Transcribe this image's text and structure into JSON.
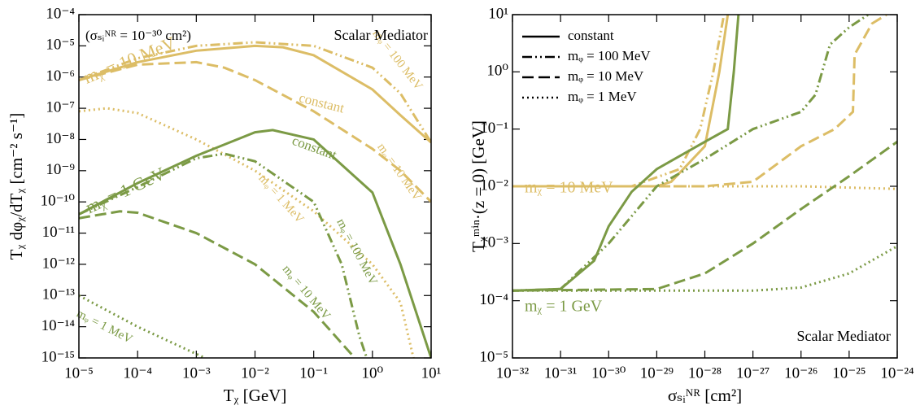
{
  "chart_data": [
    {
      "type": "line",
      "xlabel": "Tᵪ [GeV]",
      "ylabel": "Tᵪ dφᵪ/dTᵪ [cm⁻² s⁻¹]",
      "log_x": true,
      "log_y": true,
      "xlim": [
        1e-05,
        10
      ],
      "ylim": [
        1e-15,
        0.0001
      ],
      "xticks": [
        {
          "value": 1e-05,
          "label": "10⁻⁵"
        },
        {
          "value": 0.0001,
          "label": "10⁻⁴"
        },
        {
          "value": 0.001,
          "label": "10⁻³"
        },
        {
          "value": 0.01,
          "label": "10⁻²"
        },
        {
          "value": 0.1,
          "label": "10⁻¹"
        },
        {
          "value": 1,
          "label": "10⁰"
        },
        {
          "value": 10,
          "label": "10¹"
        }
      ],
      "yticks": [
        {
          "value": 1e-15,
          "label": "10⁻¹⁵"
        },
        {
          "value": 1e-14,
          "label": "10⁻¹⁴"
        },
        {
          "value": 1e-13,
          "label": "10⁻¹³"
        },
        {
          "value": 1e-12,
          "label": "10⁻¹²"
        },
        {
          "value": 1e-11,
          "label": "10⁻¹¹"
        },
        {
          "value": 1e-10,
          "label": "10⁻¹⁰"
        },
        {
          "value": 1e-09,
          "label": "10⁻⁹"
        },
        {
          "value": 1e-08,
          "label": "10⁻⁸"
        },
        {
          "value": 1e-07,
          "label": "10⁻⁷"
        },
        {
          "value": 1e-06,
          "label": "10⁻⁶"
        },
        {
          "value": 1e-05,
          "label": "10⁻⁵"
        },
        {
          "value": 0.0001,
          "label": "10⁻⁴"
        }
      ],
      "annotations": [
        {
          "text": "mᵪ = 10 MeV",
          "color": "#dcbd66"
        },
        {
          "text": "mᵪ = 1 GeV",
          "color": "#7b9a45"
        },
        {
          "text": "(σₛᵢᴺᴿ = 10⁻³⁰ cm²)",
          "color": "#000000"
        },
        {
          "text": "Scalar Mediator",
          "color": "#000000"
        }
      ],
      "series": [
        {
          "name": "constant",
          "color": "#dcbd66",
          "dash": "solid",
          "x": [
            1e-05,
            0.0001,
            0.001,
            0.01,
            0.03,
            0.1,
            1,
            3,
            10
          ],
          "values": [
            8e-07,
            3e-06,
            7e-06,
            1e-05,
            9e-06,
            5e-06,
            4e-07,
            6e-08,
            8e-09
          ]
        },
        {
          "name": "mᵩ = 100 MeV",
          "color": "#dcbd66",
          "dash": "dashdot",
          "x": [
            1e-05,
            0.0001,
            0.001,
            0.01,
            0.1,
            1,
            3,
            10
          ],
          "values": [
            8e-07,
            4e-06,
            1e-05,
            1.3e-05,
            1e-05,
            2e-06,
            3e-07,
            8e-09
          ]
        },
        {
          "name": "mᵩ = 10 MeV",
          "color": "#dcbd66",
          "dash": "dashed",
          "x": [
            1e-05,
            0.0001,
            0.001,
            0.003,
            0.01,
            0.1,
            1,
            3,
            10
          ],
          "values": [
            8e-07,
            2.5e-06,
            3e-06,
            2e-06,
            8e-07,
            8e-08,
            5e-09,
            1e-09,
            1e-10
          ]
        },
        {
          "name": "mᵩ = 1 MeV",
          "color": "#dcbd66",
          "dash": "dotted",
          "x": [
            1e-05,
            3e-05,
            0.0001,
            0.001,
            0.01,
            0.1,
            1,
            3,
            5
          ],
          "values": [
            8e-08,
            1e-07,
            7e-08,
            1e-08,
            1e-09,
            5e-11,
            1e-12,
            6e-14,
            1e-15
          ]
        },
        {
          "name": "constant",
          "color": "#7b9a45",
          "dash": "solid",
          "x": [
            1e-05,
            0.0001,
            0.001,
            0.01,
            0.02,
            0.1,
            1,
            3,
            10
          ],
          "values": [
            4e-11,
            4e-10,
            3e-09,
            1.7e-08,
            2e-08,
            1e-08,
            2e-10,
            1e-12,
            1e-15
          ]
        },
        {
          "name": "mᵩ = 100 MeV",
          "color": "#7b9a45",
          "dash": "dashdot",
          "x": [
            1e-05,
            0.0001,
            0.001,
            0.003,
            0.01,
            0.1,
            0.3,
            0.6,
            0.8
          ],
          "values": [
            4e-11,
            3e-10,
            2.5e-09,
            3.5e-09,
            2e-09,
            1e-10,
            1e-12,
            5e-15,
            1e-15
          ]
        },
        {
          "name": "mᵩ = 10 MeV",
          "color": "#7b9a45",
          "dash": "dashed",
          "x": [
            1e-05,
            5e-05,
            0.0001,
            0.001,
            0.01,
            0.1,
            0.5
          ],
          "values": [
            3e-11,
            5e-11,
            4.5e-11,
            1e-11,
            1e-12,
            3e-14,
            1e-15
          ]
        },
        {
          "name": "mᵩ = 1 MeV",
          "color": "#7b9a45",
          "dash": "dotted",
          "x": [
            1e-05,
            0.0001,
            0.0014
          ],
          "values": [
            1e-13,
            1e-14,
            1e-15
          ]
        }
      ]
    },
    {
      "type": "line",
      "xlabel": "σₛᵢᴺᴿ [cm²]",
      "ylabel": "Tᵪᵐⁱⁿ·(z = 0) [GeV]",
      "log_x": true,
      "log_y": true,
      "xlim": [
        1e-32,
        1e-24
      ],
      "ylim": [
        1e-05,
        10
      ],
      "xticks": [
        {
          "value": 1e-32,
          "label": "10⁻³²"
        },
        {
          "value": 1e-31,
          "label": "10⁻³¹"
        },
        {
          "value": 1e-30,
          "label": "10⁻³⁰"
        },
        {
          "value": 1e-29,
          "label": "10⁻²⁹"
        },
        {
          "value": 1e-28,
          "label": "10⁻²⁸"
        },
        {
          "value": 1e-27,
          "label": "10⁻²⁷"
        },
        {
          "value": 1e-26,
          "label": "10⁻²⁶"
        },
        {
          "value": 1e-25,
          "label": "10⁻²⁵"
        },
        {
          "value": 1e-24,
          "label": "10⁻²⁴"
        }
      ],
      "yticks": [
        {
          "value": 1e-05,
          "label": "10⁻⁵"
        },
        {
          "value": 0.0001,
          "label": "10⁻⁴"
        },
        {
          "value": 0.001,
          "label": "10⁻³"
        },
        {
          "value": 0.01,
          "label": "10⁻²"
        },
        {
          "value": 0.1,
          "label": "10⁻¹"
        },
        {
          "value": 1,
          "label": "10⁰"
        },
        {
          "value": 10,
          "label": "10¹"
        }
      ],
      "legend_position": "upper left",
      "legend": [
        {
          "label": "constant",
          "dash": "solid"
        },
        {
          "label": "mᵩ = 100 MeV",
          "dash": "dashdot"
        },
        {
          "label": "mᵩ = 10 MeV",
          "dash": "dashed"
        },
        {
          "label": "mᵩ = 1 MeV",
          "dash": "dotted"
        }
      ],
      "annotations": [
        {
          "text": "mᵪ = 10 MeV",
          "color": "#dcbd66"
        },
        {
          "text": "mᵪ = 1 GeV",
          "color": "#7b9a45"
        },
        {
          "text": "Scalar Mediator",
          "color": "#000000"
        }
      ],
      "series": [
        {
          "color": "#dcbd66",
          "dash": "solid",
          "x": [
            1e-32,
            1e-30,
            1e-29,
            2e-29,
            1e-28,
            2e-28,
            3e-28
          ],
          "values": [
            0.01,
            0.01,
            0.01,
            0.012,
            0.05,
            1,
            10
          ]
        },
        {
          "color": "#dcbd66",
          "dash": "dashdot",
          "x": [
            1e-32,
            1e-30,
            3e-30,
            3e-29,
            8e-29,
            1.5e-28,
            2.5e-28
          ],
          "values": [
            0.01,
            0.01,
            0.01,
            0.02,
            0.1,
            1,
            10
          ]
        },
        {
          "color": "#dcbd66",
          "dash": "dashed",
          "x": [
            1e-32,
            1e-28,
            1e-27,
            1e-26,
            5e-26,
            1.2e-25,
            1.3e-25,
            3e-25,
            6e-25
          ],
          "values": [
            0.01,
            0.01,
            0.012,
            0.05,
            0.1,
            0.2,
            2,
            7,
            10
          ]
        },
        {
          "color": "#dcbd66",
          "dash": "dotted",
          "x": [
            1e-32,
            1e-26,
            1e-24
          ],
          "values": [
            0.01,
            0.01,
            0.009
          ]
        },
        {
          "color": "#7b9a45",
          "dash": "solid",
          "x": [
            1e-32,
            1e-31,
            5e-31,
            1e-30,
            3e-30,
            1e-29,
            1e-28,
            3e-28,
            4e-28,
            5e-28
          ],
          "values": [
            0.00015,
            0.00016,
            0.0005,
            0.002,
            0.008,
            0.02,
            0.06,
            0.1,
            1,
            10
          ]
        },
        {
          "color": "#7b9a45",
          "dash": "dashdot",
          "x": [
            1e-32,
            1e-31,
            1e-30,
            1e-29,
            1e-28,
            1e-27,
            1e-26,
            2e-26,
            4e-26,
            1e-25,
            2.5e-25
          ],
          "values": [
            0.00015,
            0.00016,
            0.001,
            0.01,
            0.03,
            0.1,
            0.2,
            0.4,
            3,
            6,
            10
          ]
        },
        {
          "color": "#7b9a45",
          "dash": "dashed",
          "x": [
            1e-32,
            1e-29,
            1e-28,
            1e-27,
            1e-26,
            1e-25,
            1e-24
          ],
          "values": [
            0.00015,
            0.00016,
            0.0003,
            0.001,
            0.004,
            0.015,
            0.06
          ]
        },
        {
          "color": "#7b9a45",
          "dash": "dotted",
          "x": [
            1e-32,
            1e-27,
            1e-26,
            1e-25,
            1e-24
          ],
          "values": [
            0.00015,
            0.00015,
            0.00017,
            0.0003,
            0.0009
          ]
        }
      ]
    }
  ]
}
